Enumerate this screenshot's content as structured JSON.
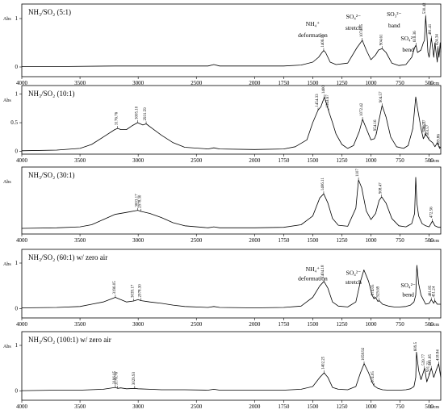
{
  "figure": {
    "ylabel": "Abs",
    "xunit": "1/cm"
  },
  "chart_data": [
    {
      "type": "line",
      "title": "NH₃/SO₂ (5:1)",
      "xlabel": "1/cm",
      "ylabel": "Abs",
      "xlim": [
        4000,
        400
      ],
      "xticks": [
        4000,
        3500,
        3000,
        2500,
        2000,
        1750,
        1500,
        1250,
        1000,
        750,
        500
      ],
      "ylim": [
        -0.2,
        1.3
      ],
      "yticks": [
        0,
        1
      ],
      "x": [
        4000,
        3600,
        3200,
        2800,
        2400,
        2350,
        2300,
        2000,
        1750,
        1600,
        1500,
        1450,
        1420,
        1406,
        1390,
        1350,
        1300,
        1200,
        1120,
        1074,
        1040,
        1000,
        960,
        935,
        904,
        870,
        820,
        760,
        700,
        650,
        625,
        613,
        600,
        570,
        550,
        540,
        530,
        520,
        510,
        500,
        490,
        481,
        470,
        460,
        450,
        440,
        430,
        424,
        415,
        405,
        400
      ],
      "y": [
        0.01,
        0.01,
        0.02,
        0.02,
        0.02,
        0.05,
        0.02,
        0.02,
        0.02,
        0.04,
        0.1,
        0.2,
        0.3,
        0.34,
        0.3,
        0.1,
        0.05,
        0.08,
        0.4,
        0.55,
        0.35,
        0.15,
        0.25,
        0.35,
        0.38,
        0.3,
        0.08,
        0.03,
        0.05,
        0.2,
        0.4,
        0.45,
        0.3,
        0.35,
        0.5,
        0.55,
        1.05,
        0.7,
        0.3,
        0.2,
        0.4,
        0.6,
        0.4,
        0.2,
        0.5,
        0.3,
        0.1,
        0.4,
        0.2,
        0.5,
        0.3
      ],
      "peak_labels": [
        {
          "x": 1406.11,
          "text": "1406.11"
        },
        {
          "x": 1074.35,
          "text": "1074.35"
        },
        {
          "x": 904.61,
          "text": "904.61"
        },
        {
          "x": 613.36,
          "text": "613.36"
        },
        {
          "x": 530.42,
          "text": "530.42"
        },
        {
          "x": 481.41,
          "text": "481.41"
        },
        {
          "x": 424.34,
          "text": "424.34"
        }
      ],
      "annotations": [
        {
          "text": "NH₄⁺",
          "x": 1500,
          "level": 0.85
        },
        {
          "text": "deformation",
          "x": 1500,
          "level": 0.62
        },
        {
          "text": "SO₄²⁻",
          "x": 1150,
          "level": 1.0
        },
        {
          "text": "stretch",
          "x": 1150,
          "level": 0.77
        },
        {
          "text": "SO₃²⁻",
          "x": 800,
          "level": 1.05
        },
        {
          "text": "band",
          "x": 800,
          "level": 0.82
        },
        {
          "text": "SO₄²⁻",
          "x": 680,
          "level": 0.55
        },
        {
          "text": "bend",
          "x": 680,
          "level": 0.32
        }
      ]
    },
    {
      "type": "line",
      "title": "NH₃/SO₂ (10:1)",
      "xlabel": "1/cm",
      "ylabel": "Abs",
      "xlim": [
        4000,
        400
      ],
      "xticks": [
        4000,
        3500,
        3000,
        2500,
        2000,
        1750,
        1500,
        1250,
        1000,
        750,
        500
      ],
      "ylim": [
        -0.05,
        1.15
      ],
      "yticks": [
        0,
        0.5,
        1
      ],
      "x": [
        4000,
        3700,
        3500,
        3400,
        3300,
        3200,
        3176,
        3150,
        3100,
        3050,
        3005,
        2960,
        2931,
        2880,
        2800,
        2700,
        2600,
        2400,
        2350,
        2300,
        2000,
        1750,
        1650,
        1550,
        1500,
        1454,
        1430,
        1400,
        1363,
        1330,
        1300,
        1250,
        1200,
        1150,
        1100,
        1072,
        1040,
        1000,
        970,
        954,
        930,
        904,
        870,
        830,
        780,
        720,
        680,
        640,
        615,
        600,
        570,
        550,
        530,
        500,
        470,
        450,
        430,
        410,
        400
      ],
      "y": [
        0.01,
        0.02,
        0.05,
        0.12,
        0.25,
        0.38,
        0.4,
        0.38,
        0.38,
        0.45,
        0.5,
        0.46,
        0.48,
        0.4,
        0.28,
        0.15,
        0.07,
        0.04,
        0.06,
        0.04,
        0.03,
        0.04,
        0.08,
        0.2,
        0.5,
        0.72,
        0.78,
        0.95,
        0.7,
        0.5,
        0.3,
        0.12,
        0.05,
        0.1,
        0.35,
        0.56,
        0.4,
        0.2,
        0.22,
        0.3,
        0.55,
        0.8,
        0.6,
        0.25,
        0.08,
        0.05,
        0.1,
        0.4,
        0.95,
        0.75,
        0.4,
        0.22,
        0.3,
        0.2,
        0.15,
        0.08,
        0.15,
        0.05,
        0.08
      ],
      "peak_labels": [
        {
          "x": 3176.76,
          "text": "3176.76"
        },
        {
          "x": 3005.1,
          "text": "3005.10"
        },
        {
          "x": 2931.59,
          "text": "2931.59"
        },
        {
          "x": 1454.33,
          "text": "1454.33"
        },
        {
          "x": 1400,
          "text": "1400"
        },
        {
          "x": 1363.67,
          "text": "1363.67"
        },
        {
          "x": 1072.42,
          "text": "1072.42"
        },
        {
          "x": 954.16,
          "text": "954.16"
        },
        {
          "x": 904.57,
          "text": "904.57"
        },
        {
          "x": 530.77,
          "text": "530.77"
        },
        {
          "x": 503.57,
          "text": "503.57"
        },
        {
          "x": 536.21,
          "text": "536.21"
        },
        {
          "x": 409.86,
          "text": "409.86"
        }
      ]
    },
    {
      "type": "line",
      "title": "NH₃/SO₂ (30:1)",
      "xlabel": "1/cm",
      "ylabel": "Abs",
      "xlim": [
        4000,
        400
      ],
      "xticks": [
        4000,
        3500,
        3000,
        2500,
        2000,
        1750,
        1500,
        1250,
        1000,
        750,
        500
      ],
      "ylim": [
        -0.1,
        1.2
      ],
      "yticks": [],
      "x": [
        4000,
        3700,
        3500,
        3400,
        3300,
        3200,
        3100,
        3003,
        2978,
        2900,
        2800,
        2700,
        2600,
        2400,
        2350,
        2300,
        2000,
        1750,
        1600,
        1500,
        1440,
        1406,
        1370,
        1330,
        1280,
        1200,
        1130,
        1107,
        1080,
        1040,
        1000,
        960,
        930,
        908,
        870,
        820,
        760,
        700,
        650,
        625,
        615,
        605,
        590,
        560,
        530,
        500,
        472,
        450,
        420,
        400
      ],
      "y": [
        0.01,
        0.02,
        0.04,
        0.08,
        0.18,
        0.28,
        0.32,
        0.36,
        0.34,
        0.3,
        0.22,
        0.12,
        0.06,
        0.02,
        0.04,
        0.02,
        0.02,
        0.03,
        0.08,
        0.25,
        0.6,
        0.68,
        0.5,
        0.2,
        0.07,
        0.05,
        0.4,
        0.95,
        0.8,
        0.35,
        0.18,
        0.3,
        0.55,
        0.62,
        0.5,
        0.2,
        0.06,
        0.04,
        0.1,
        0.3,
        1.0,
        0.5,
        0.25,
        0.1,
        0.06,
        0.04,
        0.15,
        0.06,
        0.03,
        0.03
      ],
      "peak_labels": [
        {
          "x": 3003.17,
          "text": "3003.17"
        },
        {
          "x": 2978.3,
          "text": "2978.30"
        },
        {
          "x": 1406.11,
          "text": "1406.11"
        },
        {
          "x": 1107,
          "text": "1107"
        },
        {
          "x": 908.47,
          "text": "908.47"
        },
        {
          "x": 472.56,
          "text": "472.56"
        }
      ]
    },
    {
      "type": "line",
      "title": "NH₃/SO₂ (60:1) w/ zero air",
      "xlabel": "1/cm",
      "ylabel": "Abs",
      "xlim": [
        4000,
        400
      ],
      "xticks": [
        4000,
        3500,
        3000,
        2500,
        2000,
        1750,
        1500,
        1250,
        1000,
        750,
        500
      ],
      "ylim": [
        -0.2,
        1.3
      ],
      "yticks": [
        0,
        1
      ],
      "x": [
        4000,
        3700,
        3500,
        3400,
        3300,
        3196,
        3150,
        3100,
        3039,
        3000,
        2978,
        2900,
        2800,
        2700,
        2600,
        2400,
        2350,
        2300,
        2000,
        1750,
        1600,
        1500,
        1440,
        1404,
        1370,
        1330,
        1280,
        1200,
        1130,
        1090,
        1060,
        1020,
        990,
        974,
        960,
        940,
        929,
        900,
        850,
        800,
        750,
        700,
        660,
        630,
        615,
        605,
        590,
        570,
        550,
        530,
        500,
        481,
        460,
        451,
        430,
        400
      ],
      "y": [
        0.02,
        0.03,
        0.05,
        0.1,
        0.15,
        0.25,
        0.2,
        0.15,
        0.17,
        0.2,
        0.18,
        0.15,
        0.12,
        0.08,
        0.05,
        0.03,
        0.05,
        0.03,
        0.02,
        0.03,
        0.06,
        0.25,
        0.5,
        0.6,
        0.45,
        0.15,
        0.06,
        0.04,
        0.15,
        0.6,
        0.85,
        0.6,
        0.3,
        0.22,
        0.25,
        0.16,
        0.18,
        0.1,
        0.06,
        0.04,
        0.04,
        0.05,
        0.08,
        0.15,
        0.3,
        0.95,
        0.55,
        0.3,
        0.2,
        0.1,
        0.12,
        0.2,
        0.12,
        0.18,
        0.1,
        0.1
      ],
      "peak_labels": [
        {
          "x": 3196.05,
          "text": "3196.05"
        },
        {
          "x": 3039.17,
          "text": "3039.17"
        },
        {
          "x": 2978.3,
          "text": "2978.30"
        },
        {
          "x": 1404.18,
          "text": "1404.18"
        },
        {
          "x": 974.05,
          "text": "974.05"
        },
        {
          "x": 929.69,
          "text": "929.69"
        },
        {
          "x": 481.85,
          "text": "481.85"
        },
        {
          "x": 451.24,
          "text": "451.24"
        }
      ],
      "annotations": [
        {
          "text": "NH₄⁺",
          "x": 1500,
          "level": 0.82
        },
        {
          "text": "deformation",
          "x": 1500,
          "level": 0.62
        },
        {
          "text": "SO₄²⁻",
          "x": 1150,
          "level": 0.74
        },
        {
          "text": "stretch",
          "x": 1150,
          "level": 0.54
        },
        {
          "text": "SO₄²⁻",
          "x": 680,
          "level": 0.47
        },
        {
          "text": "bend",
          "x": 680,
          "level": 0.27
        }
      ]
    },
    {
      "type": "line",
      "title": "NH₃/SO₂ (100:1) w/ zero air",
      "xlabel": "1/cm",
      "ylabel": "Abs",
      "xlim": [
        4000,
        400
      ],
      "xticks": [
        4000,
        3500,
        3000,
        2500,
        2000,
        1750,
        1500,
        1250,
        1000,
        750,
        500
      ],
      "ylim": [
        -0.2,
        1.3
      ],
      "yticks": [
        0,
        1
      ],
      "x": [
        4000,
        3700,
        3500,
        3300,
        3196,
        3176,
        3150,
        3100,
        3029,
        3000,
        2900,
        2800,
        2600,
        2400,
        2350,
        2300,
        2000,
        1750,
        1600,
        1500,
        1440,
        1402,
        1370,
        1330,
        1280,
        1200,
        1130,
        1090,
        1058,
        1020,
        990,
        974,
        940,
        900,
        850,
        800,
        750,
        700,
        660,
        630,
        615,
        609,
        590,
        570,
        539,
        520,
        500,
        481,
        460,
        440,
        418,
        400
      ],
      "y": [
        0.01,
        0.02,
        0.02,
        0.04,
        0.08,
        0.06,
        0.07,
        0.05,
        0.06,
        0.05,
        0.04,
        0.03,
        0.03,
        0.02,
        0.04,
        0.02,
        0.02,
        0.02,
        0.04,
        0.1,
        0.3,
        0.4,
        0.3,
        0.08,
        0.04,
        0.03,
        0.1,
        0.4,
        0.6,
        0.4,
        0.2,
        0.12,
        0.06,
        0.03,
        0.02,
        0.02,
        0.02,
        0.03,
        0.05,
        0.1,
        0.3,
        0.85,
        0.45,
        0.25,
        0.5,
        0.2,
        0.35,
        0.5,
        0.3,
        0.45,
        0.6,
        0.3
      ],
      "peak_labels": [
        {
          "x": 3196.05,
          "text": "3196.05"
        },
        {
          "x": 3176.76,
          "text": "3176.76"
        },
        {
          "x": 3029.93,
          "text": "3029.93"
        },
        {
          "x": 1402.25,
          "text": "1402.25"
        },
        {
          "x": 1058.92,
          "text": "1058.92"
        },
        {
          "x": 974.05,
          "text": "974.05"
        },
        {
          "x": 609.5,
          "text": "609.5"
        },
        {
          "x": 539.77,
          "text": "539.77"
        },
        {
          "x": 501.21,
          "text": "501.21"
        },
        {
          "x": 481.85,
          "text": "481.85"
        },
        {
          "x": 418.84,
          "text": "418.84"
        }
      ]
    }
  ]
}
